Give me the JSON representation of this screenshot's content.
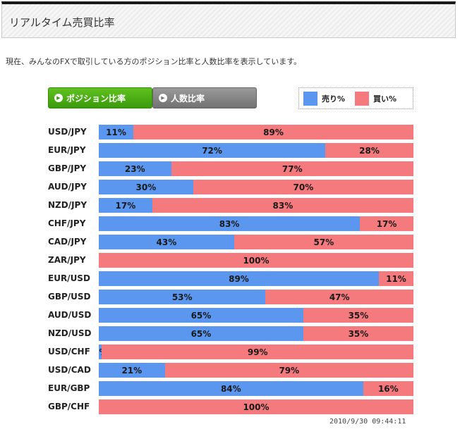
{
  "header": {
    "title": "リアルタイム売買比率"
  },
  "description": "現在、みんなのFXで取引している方のポジション比率と人数比率を表示しています。",
  "tabs": [
    {
      "label": "ポジション比率",
      "active": true,
      "icon": "play-icon"
    },
    {
      "label": "人数比率",
      "active": false,
      "icon": "play-icon"
    }
  ],
  "colors": {
    "sell": "#5b97ef",
    "buy": "#f47a7e",
    "tab_active": "#4aaa14",
    "tab_inactive": "#888888"
  },
  "legend": {
    "sell_label": "売り%",
    "buy_label": "買い%"
  },
  "chart_data": {
    "type": "bar",
    "orientation": "horizontal",
    "stacked": true,
    "normalized_100": true,
    "categories": [
      "USD/JPY",
      "EUR/JPY",
      "GBP/JPY",
      "AUD/JPY",
      "NZD/JPY",
      "CHF/JPY",
      "CAD/JPY",
      "ZAR/JPY",
      "EUR/USD",
      "GBP/USD",
      "AUD/USD",
      "NZD/USD",
      "USD/CHF",
      "USD/CAD",
      "EUR/GBP",
      "GBP/CHF"
    ],
    "series": [
      {
        "name": "売り%",
        "values": [
          11,
          72,
          23,
          30,
          17,
          83,
          43,
          0,
          89,
          53,
          65,
          65,
          1,
          21,
          84,
          0
        ]
      },
      {
        "name": "買い%",
        "values": [
          89,
          28,
          77,
          70,
          83,
          17,
          57,
          100,
          11,
          47,
          35,
          35,
          99,
          79,
          16,
          100
        ]
      }
    ],
    "legend_position": "top-right",
    "ylim": [
      0,
      100
    ]
  },
  "timestamp": "2010/9/30 09:44:11"
}
